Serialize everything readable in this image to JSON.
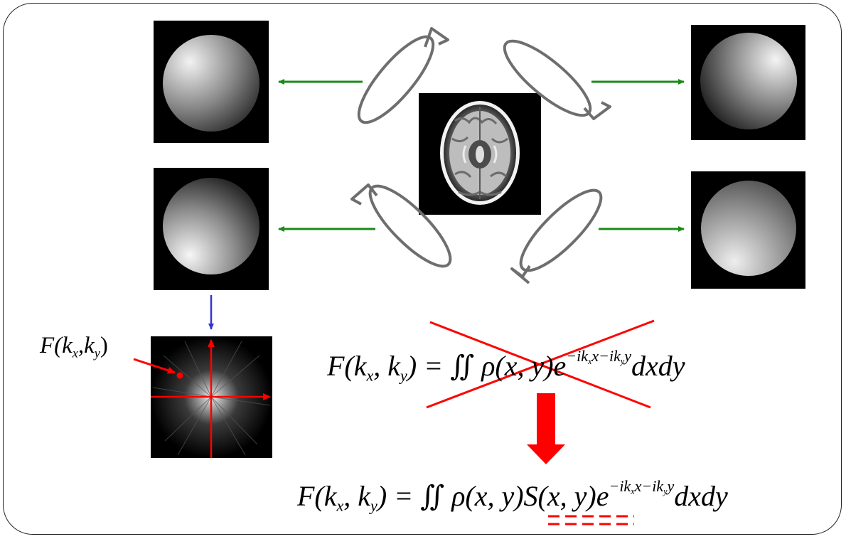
{
  "colors": {
    "transfer_arrow": "#1a8a1a",
    "fft_arrow": "#3535cc",
    "highlight": "#ff0000",
    "coil": "#6e6e6e"
  },
  "coil_images": [
    {
      "id": "coil-1",
      "brightest": "top-left"
    },
    {
      "id": "coil-2",
      "brightest": "top-right"
    },
    {
      "id": "coil-3",
      "brightest": "bottom-left"
    },
    {
      "id": "coil-4",
      "brightest": "bottom-left-soft"
    }
  ],
  "kspace_label": {
    "F": "F(k",
    "sub_x": "x",
    "comma": ",k",
    "sub_y": "y",
    "close": ")"
  },
  "eq1": {
    "lhs": "F(k",
    "kx_sub": "x",
    "comma": ", k",
    "ky_sub": "y",
    "eq_int": ") = ∬ ρ(x, y)e",
    "exp": "−ik",
    "exp_x": "x",
    "exp_mid": "x−ik",
    "exp_y": "y",
    "exp_end": "y",
    "tail": "dxdy"
  },
  "eq2": {
    "lhs": "F(k",
    "kx_sub": "x",
    "comma": ", k",
    "ky_sub": "y",
    "eq_int": ") = ∬ ρ(x, y)",
    "sens": "S(x, y)",
    "e": "e",
    "exp": "−ik",
    "exp_x": "x",
    "exp_mid": "x−ik",
    "exp_y": "y",
    "exp_end": "y",
    "tail": "dxdy"
  }
}
